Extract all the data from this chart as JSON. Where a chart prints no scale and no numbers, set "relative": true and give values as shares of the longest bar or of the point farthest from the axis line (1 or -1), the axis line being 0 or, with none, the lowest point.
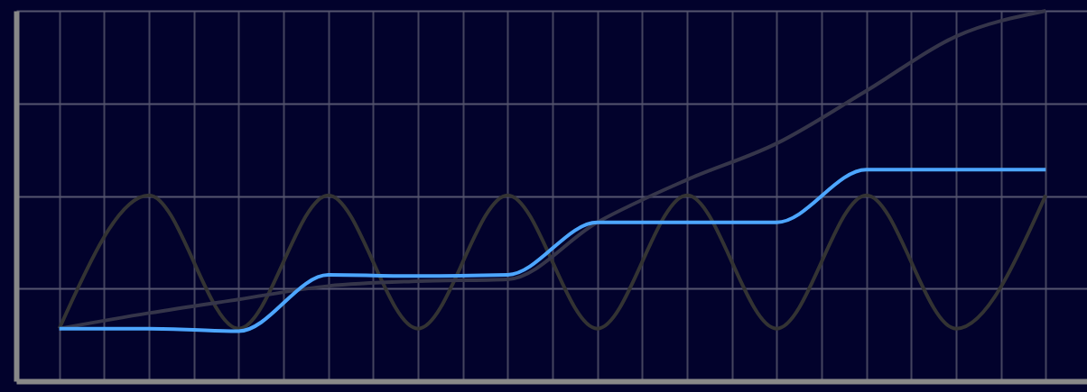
{
  "chart_data": {
    "type": "line",
    "relative": true,
    "grid": true,
    "categories": [
      null,
      null,
      null,
      null,
      null,
      null,
      null,
      null,
      null,
      null,
      null,
      null
    ],
    "series": [
      {
        "color": "#333333",
        "values": [
          0.142,
          0.502,
          0.142,
          0.502,
          0.142,
          0.502,
          0.142,
          0.502,
          0.142,
          0.502,
          0.142,
          0.502
        ]
      },
      {
        "color": "#35354a",
        "values": [
          0.142,
          0.184,
          0.221,
          0.257,
          0.27,
          0.275,
          0.429,
          0.544,
          0.642,
          0.784,
          0.931,
          1.0
        ]
      },
      {
        "color": "#4da6ff",
        "values": [
          0.142,
          0.142,
          0.135,
          0.287,
          0.284,
          0.287,
          0.429,
          0.429,
          0.429,
          0.571,
          0.571,
          0.571
        ]
      }
    ]
  }
}
